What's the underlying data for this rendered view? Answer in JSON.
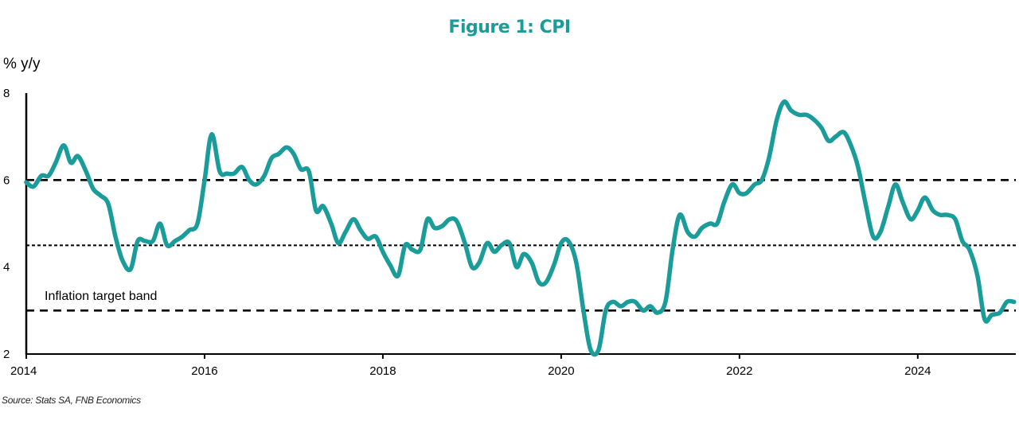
{
  "chart_data": {
    "type": "line",
    "title": "Figure 1: CPI",
    "ylabel": "% y/y",
    "xlabel": "",
    "ylim": [
      2,
      8
    ],
    "xlim": [
      2014.0,
      2025.1
    ],
    "yticks": [
      "2",
      "4",
      "6",
      "8"
    ],
    "xticks": [
      "2014",
      "2016",
      "2018",
      "2020",
      "2022",
      "2024"
    ],
    "grid": false,
    "legend": "none",
    "annotation": "Inflation target band",
    "reference_lines": [
      {
        "value": 6,
        "style": "dashed"
      },
      {
        "value": 4.5,
        "style": "dotted"
      },
      {
        "value": 3,
        "style": "dashed"
      }
    ],
    "series": [
      {
        "color": "#1a9c9a",
        "points": [
          [
            2014.0,
            5.95
          ],
          [
            2014.08,
            5.85
          ],
          [
            2014.17,
            6.1
          ],
          [
            2014.25,
            6.1
          ],
          [
            2014.33,
            6.4
          ],
          [
            2014.42,
            6.8
          ],
          [
            2014.5,
            6.4
          ],
          [
            2014.58,
            6.55
          ],
          [
            2014.67,
            6.2
          ],
          [
            2014.75,
            5.8
          ],
          [
            2014.83,
            5.65
          ],
          [
            2014.92,
            5.45
          ],
          [
            2015.0,
            4.7
          ],
          [
            2015.08,
            4.15
          ],
          [
            2015.17,
            3.95
          ],
          [
            2015.25,
            4.6
          ],
          [
            2015.33,
            4.6
          ],
          [
            2015.42,
            4.6
          ],
          [
            2015.5,
            5.0
          ],
          [
            2015.58,
            4.5
          ],
          [
            2015.67,
            4.6
          ],
          [
            2015.75,
            4.7
          ],
          [
            2015.83,
            4.85
          ],
          [
            2015.92,
            5.0
          ],
          [
            2016.0,
            6.0
          ],
          [
            2016.08,
            7.05
          ],
          [
            2016.17,
            6.2
          ],
          [
            2016.25,
            6.15
          ],
          [
            2016.33,
            6.15
          ],
          [
            2016.42,
            6.3
          ],
          [
            2016.5,
            6.0
          ],
          [
            2016.58,
            5.9
          ],
          [
            2016.67,
            6.1
          ],
          [
            2016.75,
            6.5
          ],
          [
            2016.83,
            6.6
          ],
          [
            2016.92,
            6.75
          ],
          [
            2017.0,
            6.6
          ],
          [
            2017.08,
            6.25
          ],
          [
            2017.17,
            6.2
          ],
          [
            2017.25,
            5.3
          ],
          [
            2017.33,
            5.4
          ],
          [
            2017.42,
            5.0
          ],
          [
            2017.5,
            4.55
          ],
          [
            2017.58,
            4.8
          ],
          [
            2017.67,
            5.1
          ],
          [
            2017.75,
            4.85
          ],
          [
            2017.83,
            4.65
          ],
          [
            2017.92,
            4.7
          ],
          [
            2018.0,
            4.35
          ],
          [
            2018.08,
            4.05
          ],
          [
            2018.17,
            3.8
          ],
          [
            2018.25,
            4.5
          ],
          [
            2018.33,
            4.4
          ],
          [
            2018.42,
            4.4
          ],
          [
            2018.5,
            5.1
          ],
          [
            2018.58,
            4.9
          ],
          [
            2018.67,
            4.95
          ],
          [
            2018.75,
            5.1
          ],
          [
            2018.83,
            5.05
          ],
          [
            2018.92,
            4.55
          ],
          [
            2019.0,
            4.0
          ],
          [
            2019.08,
            4.1
          ],
          [
            2019.17,
            4.55
          ],
          [
            2019.25,
            4.35
          ],
          [
            2019.33,
            4.5
          ],
          [
            2019.42,
            4.55
          ],
          [
            2019.5,
            4.0
          ],
          [
            2019.58,
            4.3
          ],
          [
            2019.67,
            4.1
          ],
          [
            2019.75,
            3.65
          ],
          [
            2019.83,
            3.65
          ],
          [
            2019.92,
            4.05
          ],
          [
            2020.0,
            4.55
          ],
          [
            2020.08,
            4.6
          ],
          [
            2020.17,
            4.1
          ],
          [
            2020.25,
            3.0
          ],
          [
            2020.33,
            2.1
          ],
          [
            2020.42,
            2.1
          ],
          [
            2020.5,
            3.0
          ],
          [
            2020.58,
            3.2
          ],
          [
            2020.67,
            3.1
          ],
          [
            2020.75,
            3.2
          ],
          [
            2020.83,
            3.2
          ],
          [
            2020.92,
            3.0
          ],
          [
            2021.0,
            3.1
          ],
          [
            2021.08,
            2.95
          ],
          [
            2021.17,
            3.2
          ],
          [
            2021.25,
            4.4
          ],
          [
            2021.33,
            5.2
          ],
          [
            2021.42,
            4.8
          ],
          [
            2021.5,
            4.7
          ],
          [
            2021.58,
            4.9
          ],
          [
            2021.67,
            5.0
          ],
          [
            2021.75,
            5.0
          ],
          [
            2021.83,
            5.5
          ],
          [
            2021.92,
            5.9
          ],
          [
            2022.0,
            5.7
          ],
          [
            2022.08,
            5.7
          ],
          [
            2022.17,
            5.9
          ],
          [
            2022.25,
            6.0
          ],
          [
            2022.33,
            6.5
          ],
          [
            2022.42,
            7.4
          ],
          [
            2022.5,
            7.8
          ],
          [
            2022.58,
            7.6
          ],
          [
            2022.67,
            7.5
          ],
          [
            2022.75,
            7.5
          ],
          [
            2022.83,
            7.4
          ],
          [
            2022.92,
            7.2
          ],
          [
            2023.0,
            6.9
          ],
          [
            2023.08,
            7.0
          ],
          [
            2023.17,
            7.1
          ],
          [
            2023.25,
            6.8
          ],
          [
            2023.33,
            6.3
          ],
          [
            2023.42,
            5.4
          ],
          [
            2023.5,
            4.7
          ],
          [
            2023.58,
            4.8
          ],
          [
            2023.67,
            5.4
          ],
          [
            2023.75,
            5.9
          ],
          [
            2023.83,
            5.5
          ],
          [
            2023.92,
            5.1
          ],
          [
            2024.0,
            5.3
          ],
          [
            2024.08,
            5.6
          ],
          [
            2024.17,
            5.3
          ],
          [
            2024.25,
            5.2
          ],
          [
            2024.33,
            5.2
          ],
          [
            2024.42,
            5.1
          ],
          [
            2024.5,
            4.6
          ],
          [
            2024.58,
            4.4
          ],
          [
            2024.67,
            3.8
          ],
          [
            2024.75,
            2.8
          ],
          [
            2024.83,
            2.9
          ],
          [
            2024.92,
            2.95
          ],
          [
            2025.0,
            3.2
          ],
          [
            2025.08,
            3.2
          ]
        ]
      }
    ]
  },
  "footer": {
    "source": "Source: Stats SA, FNB Economics"
  }
}
